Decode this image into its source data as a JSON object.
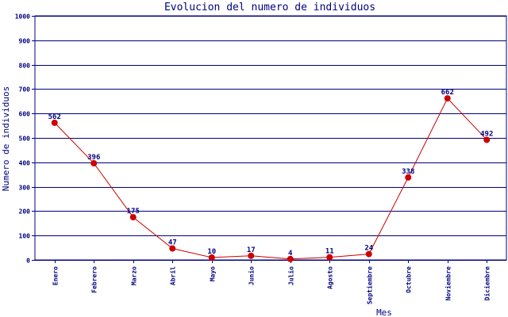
{
  "chart_data": {
    "type": "line",
    "title": "Evolucion del numero de individuos",
    "xlabel": "Mes",
    "ylabel": "Numero de individuos",
    "categories": [
      "Enero",
      "Febrero",
      "Marzo",
      "Abril",
      "Mayo",
      "Junio",
      "Julio",
      "Agosto",
      "Septiembre",
      "Octubre",
      "Noviembre",
      "Diciembre"
    ],
    "values": [
      562,
      396,
      175,
      47,
      10,
      17,
      4,
      11,
      24,
      338,
      662,
      492
    ],
    "ylim": [
      0,
      1000
    ],
    "yticks": [
      "0",
      "100",
      "200",
      "300",
      "400",
      "500",
      "600",
      "700",
      "800",
      "900",
      "1000"
    ],
    "grid": true,
    "colors": {
      "line": "#cc0000",
      "marker": "#cc0000",
      "grid": "#000080",
      "text": "#000080"
    }
  }
}
